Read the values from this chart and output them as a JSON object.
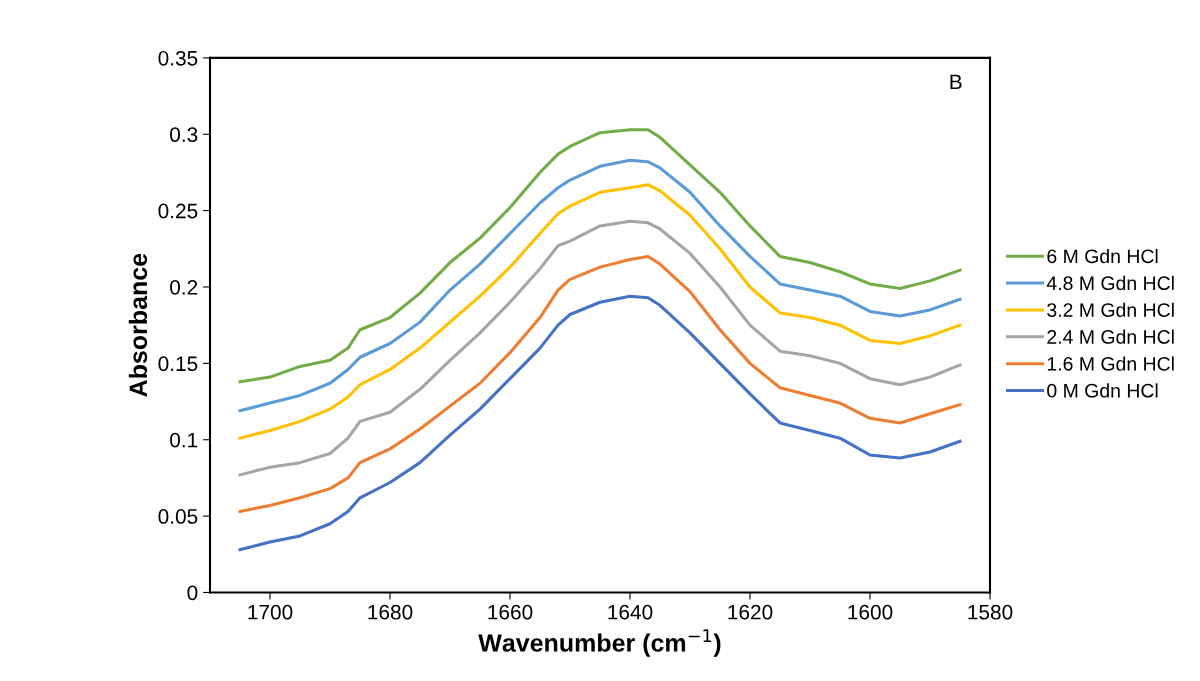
{
  "chart_data": {
    "type": "line",
    "xlabel": "Wavenumber (cm$^{−1}$)",
    "ylabel": "Absorbance",
    "x": [
      1705,
      1700,
      1695,
      1690,
      1687,
      1685,
      1680,
      1675,
      1670,
      1665,
      1660,
      1655,
      1652,
      1650,
      1645,
      1640,
      1637,
      1635,
      1630,
      1625,
      1620,
      1615,
      1610,
      1605,
      1600,
      1595,
      1590,
      1585
    ],
    "series": [
      {
        "name": "6 M Gdn HCl",
        "color": "#70ad47",
        "values": [
          0.138,
          0.141,
          0.148,
          0.152,
          0.16,
          0.172,
          0.18,
          0.196,
          0.216,
          0.232,
          0.252,
          0.275,
          0.287,
          0.292,
          0.301,
          0.303,
          0.303,
          0.298,
          0.28,
          0.262,
          0.24,
          0.22,
          0.216,
          0.21,
          0.202,
          0.199,
          0.204,
          0.211
        ]
      },
      {
        "name": "4.8 M Gdn HCl",
        "color": "#5b9bd5",
        "values": [
          0.119,
          0.124,
          0.129,
          0.137,
          0.146,
          0.154,
          0.163,
          0.177,
          0.198,
          0.215,
          0.235,
          0.255,
          0.265,
          0.27,
          0.279,
          0.283,
          0.282,
          0.278,
          0.262,
          0.24,
          0.22,
          0.202,
          0.198,
          0.194,
          0.184,
          0.181,
          0.185,
          0.192
        ]
      },
      {
        "name": "3.2 M Gdn HCl",
        "color": "#ffc000",
        "values": [
          0.101,
          0.106,
          0.112,
          0.12,
          0.128,
          0.136,
          0.146,
          0.16,
          0.177,
          0.194,
          0.213,
          0.235,
          0.248,
          0.253,
          0.262,
          0.265,
          0.267,
          0.263,
          0.247,
          0.225,
          0.2,
          0.183,
          0.18,
          0.175,
          0.165,
          0.163,
          0.168,
          0.175
        ]
      },
      {
        "name": "2.4 M Gdn HCl",
        "color": "#a5a5a5",
        "values": [
          0.077,
          0.082,
          0.085,
          0.091,
          0.101,
          0.112,
          0.118,
          0.133,
          0.152,
          0.17,
          0.19,
          0.212,
          0.227,
          0.23,
          0.24,
          0.243,
          0.242,
          0.238,
          0.222,
          0.2,
          0.175,
          0.158,
          0.155,
          0.15,
          0.14,
          0.136,
          0.141,
          0.149
        ]
      },
      {
        "name": "1.6 M Gdn HCl",
        "color": "#ed7d31",
        "values": [
          0.053,
          0.057,
          0.062,
          0.068,
          0.075,
          0.085,
          0.094,
          0.107,
          0.122,
          0.137,
          0.157,
          0.18,
          0.198,
          0.205,
          0.213,
          0.218,
          0.22,
          0.215,
          0.197,
          0.172,
          0.15,
          0.134,
          0.129,
          0.124,
          0.114,
          0.111,
          0.117,
          0.123
        ]
      },
      {
        "name": "0 M Gdn HCl",
        "color": "#4472c4",
        "values": [
          0.028,
          0.033,
          0.037,
          0.045,
          0.053,
          0.062,
          0.072,
          0.085,
          0.103,
          0.12,
          0.14,
          0.16,
          0.175,
          0.182,
          0.19,
          0.194,
          0.193,
          0.188,
          0.17,
          0.15,
          0.13,
          0.111,
          0.106,
          0.101,
          0.09,
          0.088,
          0.092,
          0.099
        ]
      }
    ],
    "xlim": [
      1710,
      1580
    ],
    "xticks": [
      1700,
      1680,
      1660,
      1640,
      1620,
      1600,
      1580
    ],
    "ylim": [
      0,
      0.35
    ],
    "yticks": [
      0,
      0.05,
      0.1,
      0.15,
      0.2,
      0.25,
      0.3,
      0.35
    ],
    "annotations": [
      "B"
    ],
    "legend": "right",
    "grid": false
  }
}
